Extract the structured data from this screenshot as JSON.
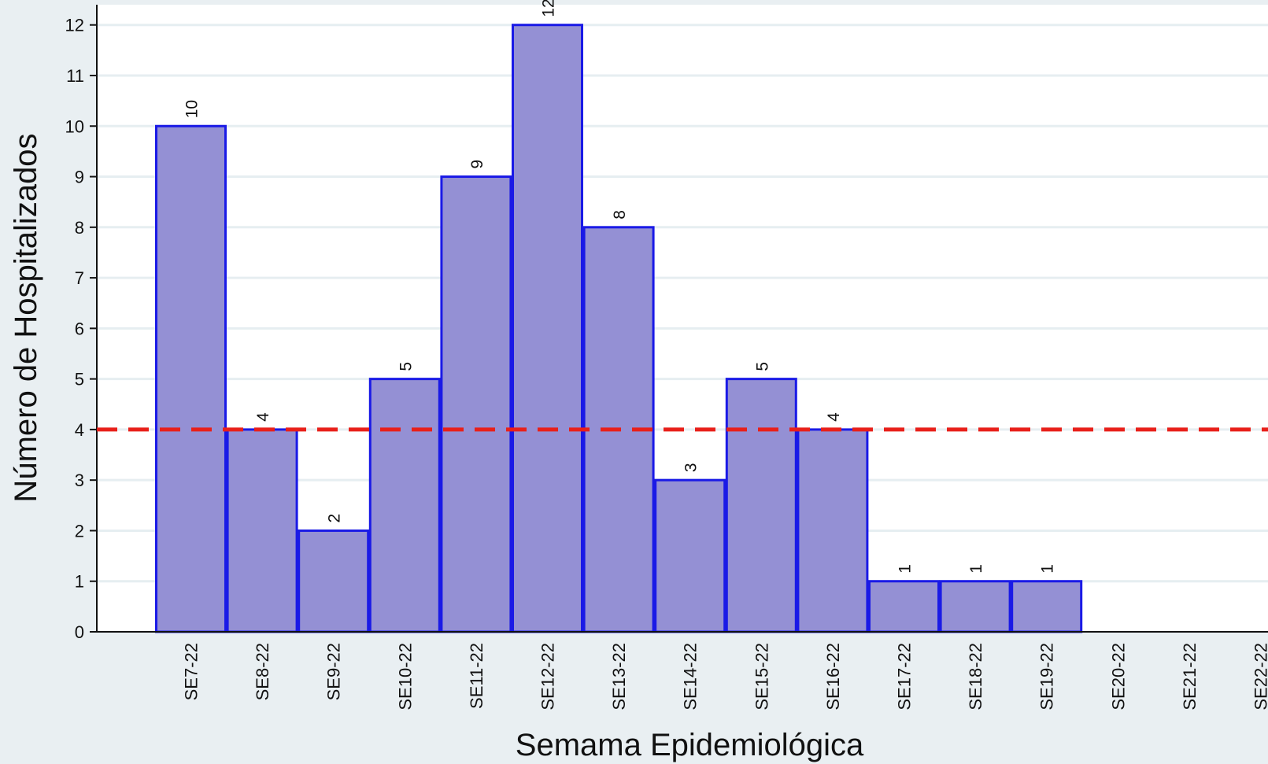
{
  "chart_data": {
    "type": "bar",
    "x_label": "Semama Epidemiológica",
    "y_label": "Número de Hospitalizados",
    "categories": [
      "SE7-22",
      "SE8-22",
      "SE9-22",
      "SE10-22",
      "SE11-22",
      "SE12-22",
      "SE13-22",
      "SE14-22",
      "SE15-22",
      "SE16-22",
      "SE17-22",
      "SE18-22",
      "SE19-22",
      "SE20-22",
      "SE21-22",
      "SE22-22"
    ],
    "values": [
      10,
      4,
      2,
      5,
      9,
      12,
      8,
      3,
      5,
      4,
      1,
      1,
      1,
      null,
      null,
      null
    ],
    "color": "#9490d4",
    "edge_color": "#1a1ae6",
    "ylim": [
      0,
      12.4
    ],
    "yticks": [
      0,
      1,
      2,
      3,
      4,
      5,
      6,
      7,
      8,
      9,
      10,
      11,
      12
    ],
    "grid": true,
    "reference_line": {
      "value": 4,
      "color": "#e8201a"
    }
  }
}
